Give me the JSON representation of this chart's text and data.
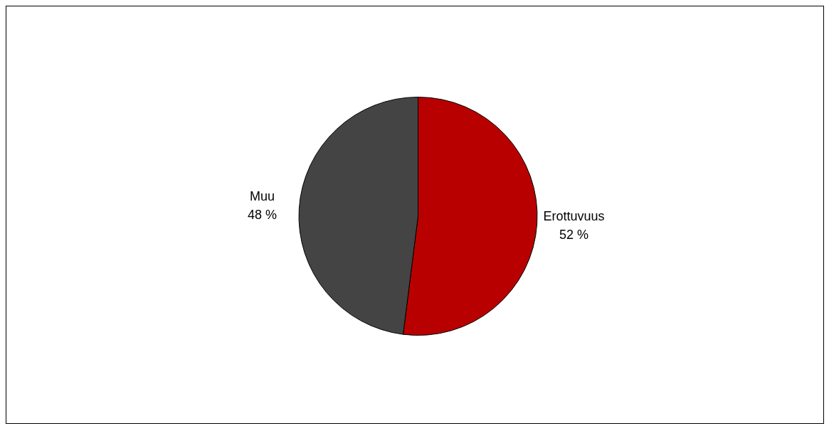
{
  "chart_data": {
    "type": "pie",
    "categories": [
      "Erottuvuus",
      "Muu"
    ],
    "values": [
      52,
      48
    ],
    "colors": [
      "#b80000",
      "#444444"
    ],
    "value_labels": [
      "52 %",
      "48 %"
    ],
    "legend": false
  }
}
